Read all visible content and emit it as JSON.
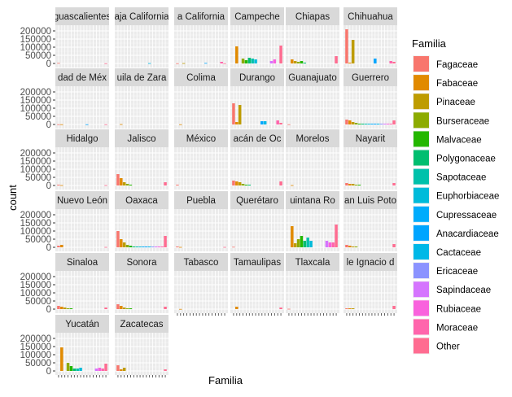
{
  "chart_data": {
    "type": "bar",
    "layout": "facet_wrap",
    "ylabel": "count",
    "xlabel": "Familia",
    "ylim": [
      0,
      220000
    ],
    "yticks": [
      0,
      50000,
      100000,
      150000,
      200000
    ],
    "grid": true,
    "legend_position": "right",
    "legend": {
      "title": "Familia",
      "categories": [
        "Fagaceae",
        "Fabaceae",
        "Pinaceae",
        "Burseraceae",
        "Malvaceae",
        "Polygonaceae",
        "Sapotaceae",
        "Euphorbiaceae",
        "Cupressaceae",
        "Anacardiaceae",
        "Cactaceae",
        "Ericaceae",
        "Sapindaceae",
        "Rubiaceae",
        "Moraceae",
        "Other"
      ],
      "colors": [
        "#F8766D",
        "#E18A00",
        "#BE9C00",
        "#8CAB00",
        "#24B700",
        "#00BE70",
        "#00C1AB",
        "#00BBDA",
        "#00ACFC",
        "#00A5FF",
        "#00B8E7",
        "#8B93FF",
        "#D575FE",
        "#F962DD",
        "#FF65AC",
        "#FF6C91"
      ]
    },
    "panels": [
      {
        "label": "guascalientes",
        "values": [
          3000,
          0,
          0,
          0,
          0,
          0,
          0,
          0,
          0,
          0,
          0,
          0,
          0,
          0,
          0,
          1000
        ]
      },
      {
        "label": "aja California",
        "values": [
          0,
          0,
          0,
          0,
          0,
          0,
          0,
          0,
          0,
          0,
          2000,
          0,
          0,
          0,
          0,
          0
        ]
      },
      {
        "label": "a California",
        "values": [
          1000,
          0,
          2000,
          0,
          0,
          0,
          0,
          0,
          0,
          3000,
          0,
          0,
          0,
          0,
          10000,
          1000
        ]
      },
      {
        "label": "Campeche",
        "values": [
          0,
          105000,
          0,
          30000,
          20000,
          35000,
          30000,
          25000,
          0,
          0,
          0,
          0,
          15000,
          25000,
          0,
          110000
        ]
      },
      {
        "label": "Chiapas",
        "values": [
          0,
          25000,
          15000,
          10000,
          15000,
          5000,
          0,
          0,
          0,
          0,
          0,
          0,
          0,
          0,
          0,
          45000
        ]
      },
      {
        "label": "Chihuahua",
        "values": [
          210000,
          5000,
          145000,
          0,
          0,
          0,
          0,
          0,
          0,
          30000,
          0,
          0,
          0,
          0,
          15000,
          10000
        ]
      },
      {
        "label": "dad de Méx",
        "values": [
          1000,
          1000,
          0,
          0,
          0,
          0,
          0,
          0,
          0,
          1000,
          0,
          0,
          0,
          0,
          0,
          1000
        ]
      },
      {
        "label": "uila de Zara",
        "values": [
          0,
          2000,
          0,
          0,
          0,
          0,
          0,
          0,
          0,
          0,
          0,
          0,
          0,
          0,
          0,
          0
        ]
      },
      {
        "label": "Colima",
        "values": [
          0,
          1000,
          0,
          0,
          0,
          0,
          0,
          0,
          0,
          0,
          0,
          0,
          0,
          0,
          0,
          0
        ]
      },
      {
        "label": "Durango",
        "values": [
          130000,
          15000,
          120000,
          0,
          0,
          0,
          0,
          0,
          0,
          20000,
          20000,
          0,
          0,
          0,
          25000,
          10000
        ]
      },
      {
        "label": "Guanajuato",
        "values": [
          1000,
          0,
          0,
          0,
          0,
          0,
          0,
          0,
          0,
          0,
          0,
          0,
          0,
          0,
          0,
          0
        ]
      },
      {
        "label": "Guerrero",
        "values": [
          30000,
          25000,
          15000,
          10000,
          5000,
          5000,
          5000,
          5000,
          5000,
          5000,
          5000,
          5000,
          5000,
          5000,
          5000,
          25000
        ]
      },
      {
        "label": "Hidalgo",
        "values": [
          5000,
          2000,
          0,
          0,
          0,
          0,
          0,
          0,
          0,
          0,
          0,
          0,
          0,
          0,
          0,
          2000
        ]
      },
      {
        "label": "Jalisco",
        "values": [
          70000,
          45000,
          20000,
          10000,
          5000,
          0,
          0,
          0,
          0,
          0,
          0,
          0,
          0,
          0,
          0,
          20000
        ]
      },
      {
        "label": "México",
        "values": [
          5000,
          0,
          0,
          0,
          0,
          0,
          0,
          0,
          0,
          0,
          0,
          0,
          0,
          0,
          0,
          0
        ]
      },
      {
        "label": "acán de Oc",
        "values": [
          30000,
          25000,
          20000,
          10000,
          5000,
          5000,
          0,
          0,
          0,
          0,
          0,
          0,
          0,
          0,
          0,
          25000
        ]
      },
      {
        "label": "Morelos",
        "values": [
          0,
          2000,
          0,
          0,
          0,
          0,
          0,
          0,
          0,
          0,
          0,
          0,
          0,
          0,
          0,
          0
        ]
      },
      {
        "label": "Nayarit",
        "values": [
          15000,
          10000,
          10000,
          5000,
          5000,
          0,
          0,
          0,
          0,
          0,
          0,
          0,
          0,
          0,
          0,
          15000
        ]
      },
      {
        "label": "Nuevo León",
        "values": [
          10000,
          15000,
          0,
          0,
          0,
          0,
          0,
          0,
          0,
          0,
          0,
          0,
          0,
          0,
          0,
          2000
        ]
      },
      {
        "label": "Oaxaca",
        "values": [
          100000,
          50000,
          30000,
          15000,
          10000,
          5000,
          5000,
          5000,
          5000,
          5000,
          5000,
          5000,
          5000,
          5000,
          5000,
          70000
        ]
      },
      {
        "label": "Puebla",
        "values": [
          5000,
          2000,
          0,
          0,
          0,
          0,
          0,
          0,
          0,
          0,
          0,
          0,
          0,
          0,
          0,
          2000
        ]
      },
      {
        "label": "Querétaro",
        "values": [
          3000,
          0,
          0,
          0,
          0,
          0,
          0,
          0,
          0,
          0,
          0,
          0,
          0,
          0,
          0,
          0
        ]
      },
      {
        "label": "uintana Ro",
        "values": [
          0,
          130000,
          25000,
          50000,
          70000,
          40000,
          60000,
          40000,
          0,
          0,
          0,
          0,
          40000,
          30000,
          30000,
          140000
        ]
      },
      {
        "label": "an Luis Poto",
        "values": [
          15000,
          10000,
          5000,
          5000,
          0,
          0,
          0,
          0,
          0,
          0,
          0,
          0,
          0,
          0,
          0,
          20000
        ]
      },
      {
        "label": "Sinaloa",
        "values": [
          20000,
          15000,
          10000,
          5000,
          5000,
          0,
          0,
          0,
          0,
          0,
          0,
          0,
          0,
          0,
          0,
          10000
        ]
      },
      {
        "label": "Sonora",
        "values": [
          30000,
          20000,
          10000,
          5000,
          5000,
          0,
          0,
          0,
          0,
          0,
          0,
          0,
          0,
          0,
          0,
          15000
        ]
      },
      {
        "label": "Tabasco",
        "values": [
          0,
          1000,
          0,
          0,
          0,
          0,
          0,
          0,
          0,
          0,
          0,
          0,
          0,
          0,
          0,
          0
        ]
      },
      {
        "label": "Tamaulipas",
        "values": [
          0,
          15000,
          0,
          0,
          0,
          0,
          0,
          0,
          0,
          0,
          0,
          0,
          0,
          0,
          0,
          10000
        ]
      },
      {
        "label": "Tlaxcala",
        "values": [
          2000,
          0,
          0,
          0,
          0,
          0,
          0,
          0,
          0,
          0,
          0,
          0,
          0,
          0,
          0,
          0
        ]
      },
      {
        "label": "le Ignacio d",
        "values": [
          5000,
          5000,
          5000,
          0,
          0,
          0,
          0,
          0,
          0,
          0,
          0,
          0,
          0,
          0,
          0,
          20000
        ]
      },
      {
        "label": "Yucatán",
        "values": [
          0,
          145000,
          0,
          50000,
          30000,
          15000,
          15000,
          20000,
          0,
          0,
          0,
          0,
          15000,
          20000,
          15000,
          45000
        ]
      },
      {
        "label": "Zacatecas",
        "values": [
          35000,
          10000,
          20000,
          0,
          0,
          0,
          0,
          0,
          0,
          0,
          0,
          0,
          0,
          0,
          0,
          10000
        ]
      }
    ]
  }
}
